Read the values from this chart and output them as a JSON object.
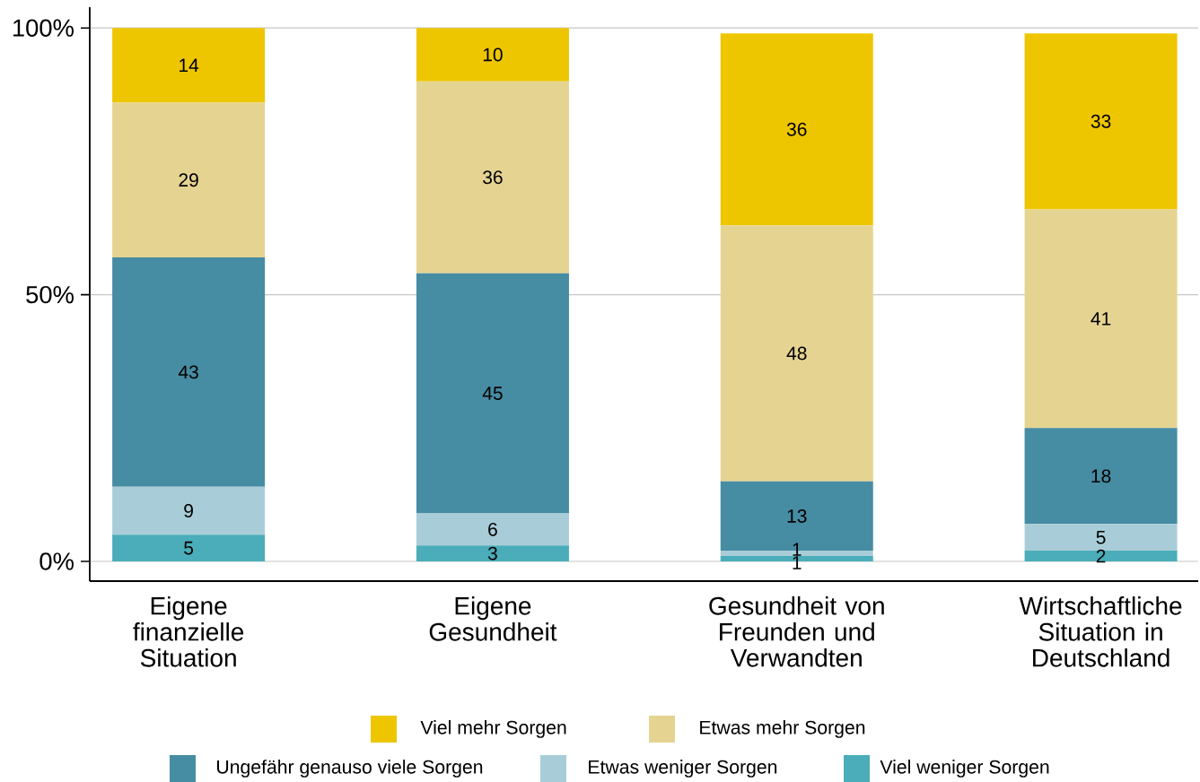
{
  "chart_data": {
    "type": "bar",
    "stacked": true,
    "categories": [
      "Eigene finanzielle Situation",
      "Eigene Gesundheit",
      "Gesundheit von Freunden und Verwandten",
      "Wirtschaftliche Situation in Deutschland"
    ],
    "series": [
      {
        "name": "Viel weniger Sorgen",
        "color": "#4aadb9",
        "values": [
          5,
          3,
          1,
          2
        ]
      },
      {
        "name": "Etwas weniger Sorgen",
        "color": "#a8cdd8",
        "values": [
          9,
          6,
          1,
          5
        ]
      },
      {
        "name": "Ungefähr genauso viele Sorgen",
        "color": "#468ca3",
        "values": [
          43,
          45,
          13,
          18
        ]
      },
      {
        "name": "Etwas mehr Sorgen",
        "color": "#e5d491",
        "values": [
          29,
          36,
          48,
          41
        ]
      },
      {
        "name": "Viel mehr Sorgen",
        "color": "#eec600",
        "values": [
          14,
          10,
          36,
          33
        ]
      }
    ],
    "ylim": [
      -3.7,
      103.9
    ],
    "yticks": [
      {
        "value": 0,
        "label": "0%"
      },
      {
        "value": 50,
        "label": "50%"
      },
      {
        "value": 100,
        "label": "100%"
      }
    ],
    "grid": "y",
    "data_labels": true,
    "legend": "bottom"
  }
}
